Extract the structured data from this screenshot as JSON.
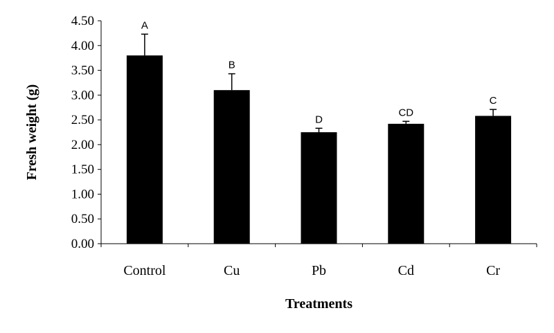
{
  "chart_data": {
    "type": "bar",
    "title": "",
    "xlabel": "Treatments",
    "ylabel": "Fresh weight (g)",
    "ylim": [
      0,
      4.5
    ],
    "yticks": [
      "0.00",
      "0.50",
      "1.00",
      "1.50",
      "2.00",
      "2.50",
      "3.00",
      "3.50",
      "4.00",
      "4.50"
    ],
    "categories": [
      "Control",
      "Cu",
      "Pb",
      "Cd",
      "Cr"
    ],
    "values": [
      3.8,
      3.1,
      2.25,
      2.42,
      2.58
    ],
    "error_upper": [
      0.43,
      0.33,
      0.08,
      0.05,
      0.13
    ],
    "significance_letters": [
      "A",
      "B",
      "D",
      "CD",
      "C"
    ],
    "bar_color": "#000000",
    "grid": false,
    "legend": "none"
  }
}
